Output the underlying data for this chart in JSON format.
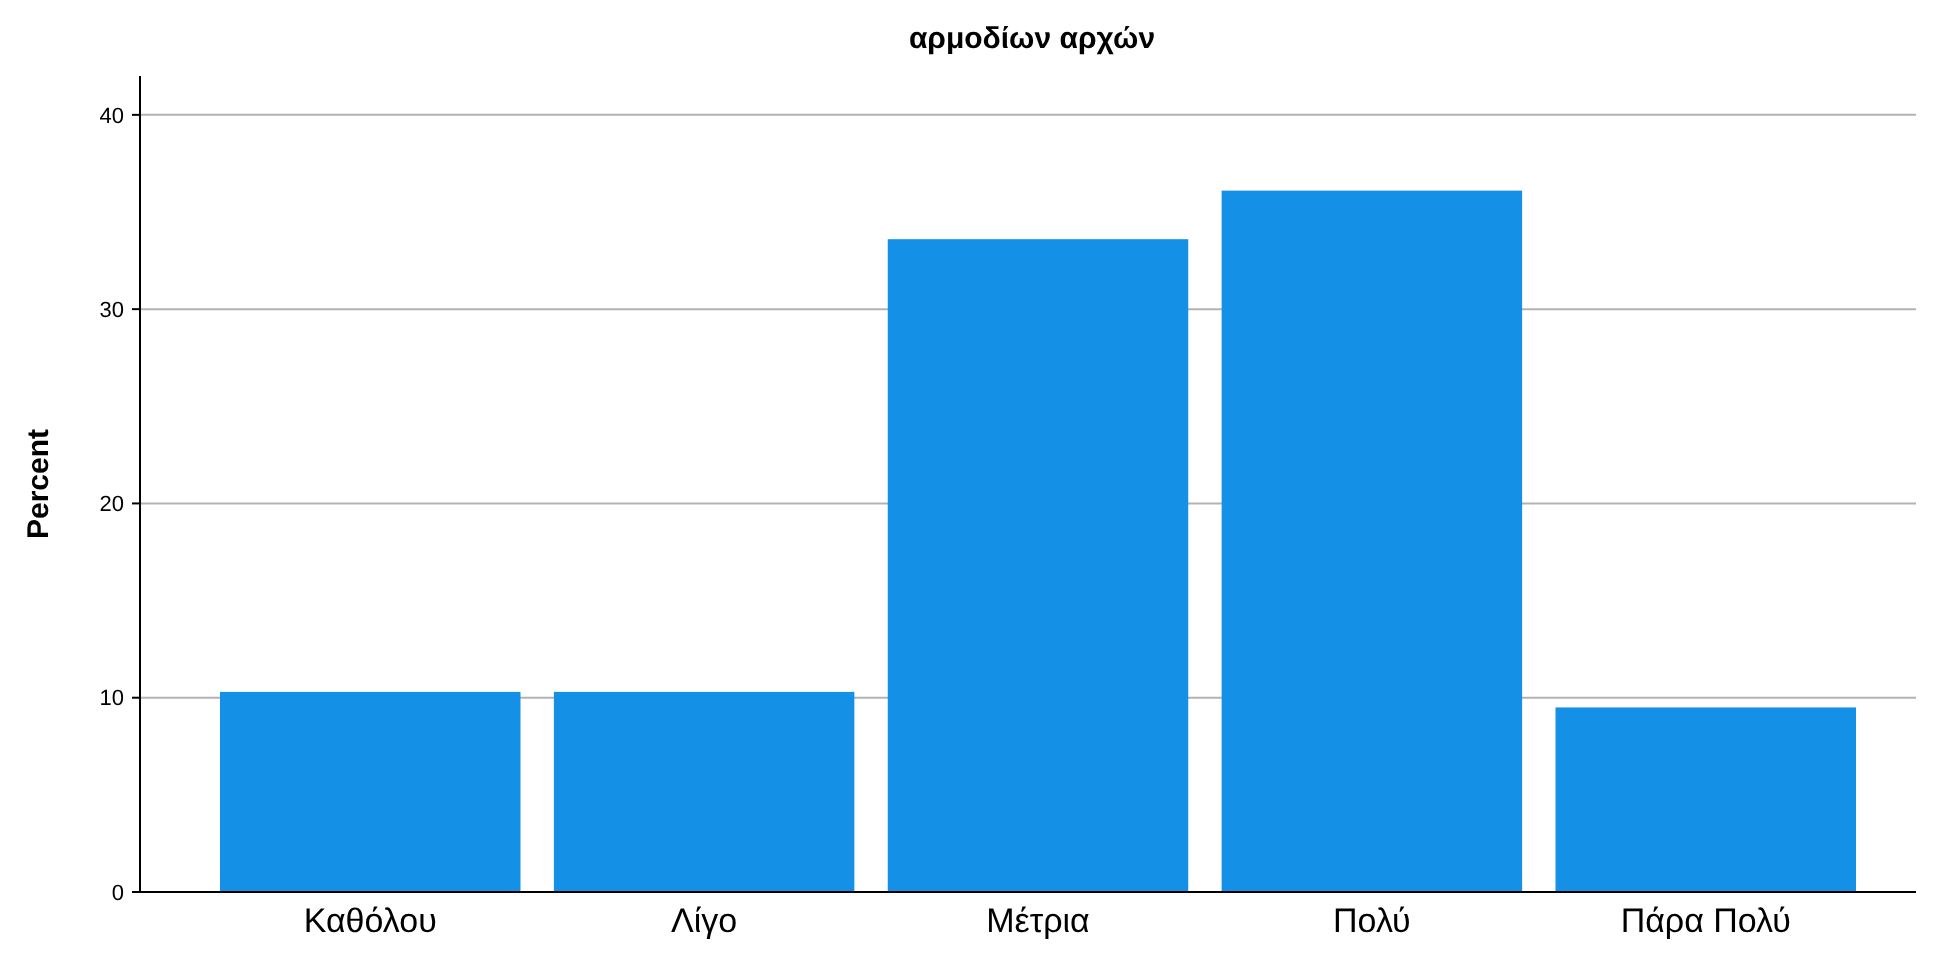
{
  "chart_data": {
    "type": "bar",
    "title": "αρμοδίων αρχών",
    "ylabel": "Percent",
    "categories": [
      "Καθόλου",
      "Λίγο",
      "Μέτρια",
      "Πολύ",
      "Πάρα Πολύ"
    ],
    "values": [
      10.3,
      10.3,
      33.6,
      36.1,
      9.5
    ],
    "color": "#1491e6",
    "ylim": [
      0,
      42
    ],
    "yticks": [
      0,
      10,
      20,
      30,
      40
    ],
    "grid": "y"
  }
}
